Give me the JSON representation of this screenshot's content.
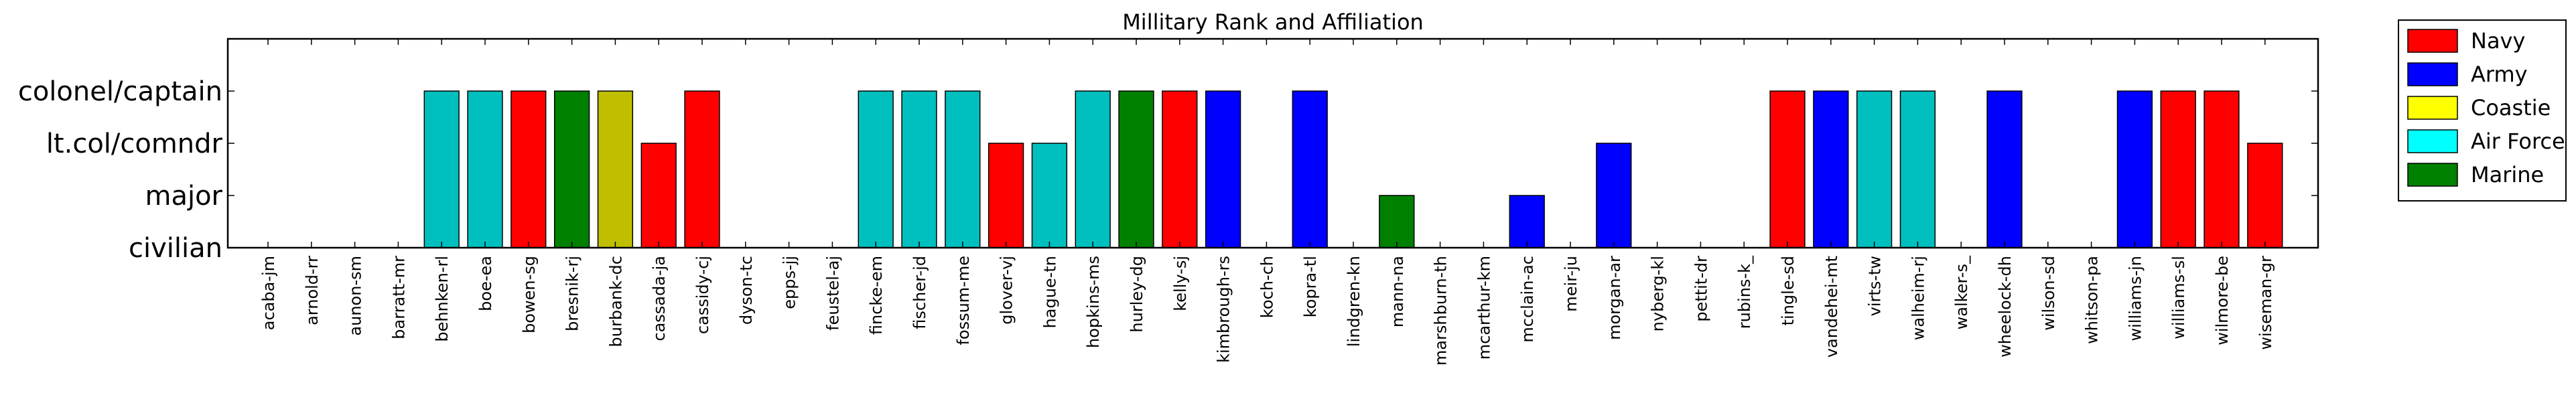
{
  "chart_data": {
    "type": "bar",
    "title": "Millitary Rank and Affiliation",
    "xlabel": "",
    "ylabel": "",
    "ylim": [
      0,
      4
    ],
    "yticks": [
      {
        "value": 0,
        "label": "civilian"
      },
      {
        "value": 1,
        "label": "major"
      },
      {
        "value": 2,
        "label": "lt.col/comndr"
      },
      {
        "value": 3,
        "label": "colonel/captain"
      }
    ],
    "grid": false,
    "legend_position": "outside-top-right",
    "legend": [
      {
        "label": "Navy",
        "color": "#ff0000"
      },
      {
        "label": "Army",
        "color": "#0000ff"
      },
      {
        "label": "Coastie",
        "color": "#ffff00"
      },
      {
        "label": "Air Force",
        "color": "#00ffff"
      },
      {
        "label": "Marine",
        "color": "#008000"
      }
    ],
    "categories": [
      "acaba-jm",
      "arnold-rr",
      "aunon-sm",
      "barratt-mr",
      "behnken-rl",
      "boe-ea",
      "bowen-sg",
      "bresnik-rj",
      "burbank-dc",
      "cassada-ja",
      "cassidy-cj",
      "dyson-tc",
      "epps-jj",
      "feustel-aj",
      "fincke-em",
      "fischer-jd",
      "fossum-me",
      "glover-vj",
      "hague-tn",
      "hopkins-ms",
      "hurley-dg",
      "kelly-sj",
      "kimbrough-rs",
      "koch-ch",
      "kopra-tl",
      "lindgren-kn",
      "mann-na",
      "marshburn-th",
      "mcarthur-km",
      "mcclain-ac",
      "meir-ju",
      "morgan-ar",
      "nyberg-kl",
      "pettit-dr",
      "rubins-k_",
      "tingle-sd",
      "vandehei-mt",
      "virts-tw",
      "walheim-rj",
      "walker-s_",
      "wheelock-dh",
      "wilson-sd",
      "whitson-pa",
      "williams-jn",
      "williams-sl",
      "wilmore-be",
      "wiseman-gr"
    ],
    "values": [
      0,
      0,
      0,
      0,
      3,
      3,
      3,
      3,
      3,
      2,
      3,
      0,
      0,
      0,
      3,
      3,
      3,
      2,
      2,
      3,
      3,
      3,
      3,
      0,
      3,
      0,
      1,
      0,
      0,
      1,
      0,
      2,
      0,
      0,
      0,
      3,
      3,
      3,
      3,
      0,
      3,
      0,
      0,
      3,
      3,
      3,
      2
    ],
    "bar_colors": [
      "",
      "",
      "",
      "",
      "#00bfbf",
      "#00bfbf",
      "#ff0000",
      "#008000",
      "#bfbf00",
      "#ff0000",
      "#ff0000",
      "",
      "",
      "",
      "#00bfbf",
      "#00bfbf",
      "#00bfbf",
      "#ff0000",
      "#00bfbf",
      "#00bfbf",
      "#008000",
      "#ff0000",
      "#0000ff",
      "",
      "#0000ff",
      "",
      "#008000",
      "",
      "",
      "#0000ff",
      "",
      "#0000ff",
      "",
      "",
      "",
      "#ff0000",
      "#0000ff",
      "#00bfbf",
      "#00bfbf",
      "",
      "#0000ff",
      "",
      "",
      "#0000ff",
      "#ff0000",
      "#ff0000",
      "#ff0000"
    ]
  }
}
